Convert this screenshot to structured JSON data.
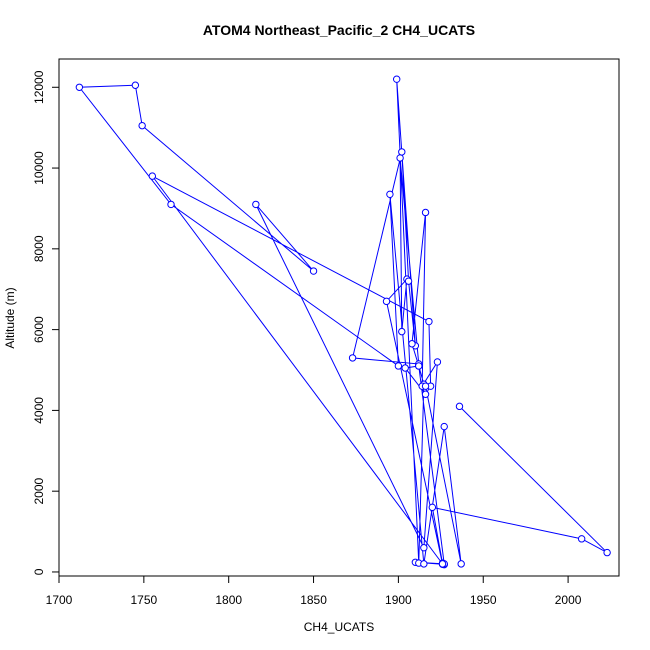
{
  "chart_data": {
    "type": "line",
    "title": "ATOM4 Northeast_Pacific_2 CH4_UCATS",
    "xlabel": "CH4_UCATS",
    "ylabel": "Altitude (m)",
    "xlim": [
      1700,
      2030
    ],
    "ylim": [
      -100,
      12700
    ],
    "xticks": [
      1700,
      1750,
      1800,
      1850,
      1900,
      1950,
      2000
    ],
    "yticks": [
      0,
      2000,
      4000,
      6000,
      8000,
      10000,
      12000
    ],
    "grid": false,
    "color": "#0000ff",
    "markers": "open-circle",
    "series": [
      {
        "x": [
          1936,
          2023,
          2008,
          1920,
          1926,
          1927,
          1926,
          1910,
          1927,
          1912,
          1904,
          1916,
          1919,
          1918,
          1755,
          1926,
          1893,
          1905,
          1902,
          1901,
          1912,
          1873,
          1902,
          1906,
          1910,
          1899,
          1912,
          1915,
          1912,
          1908,
          1916,
          1914,
          1923,
          1915,
          1816,
          1850,
          1749,
          1745,
          1712,
          1766,
          1900,
          1895,
          1915,
          1927,
          1937,
          1916
        ],
        "y": [
          4100,
          480,
          820,
          1600,
          220,
          180,
          190,
          240,
          200,
          5100,
          5050,
          4400,
          4600,
          6200,
          9800,
          200,
          6700,
          7250,
          5950,
          10250,
          5150,
          5300,
          10400,
          7200,
          5600,
          12200,
          220,
          4650,
          5100,
          5650,
          8900,
          4600,
          5200,
          600,
          9100,
          7450,
          11050,
          12050,
          12000,
          9100,
          5100,
          9350,
          200,
          3600,
          200,
          4600
        ]
      }
    ]
  }
}
